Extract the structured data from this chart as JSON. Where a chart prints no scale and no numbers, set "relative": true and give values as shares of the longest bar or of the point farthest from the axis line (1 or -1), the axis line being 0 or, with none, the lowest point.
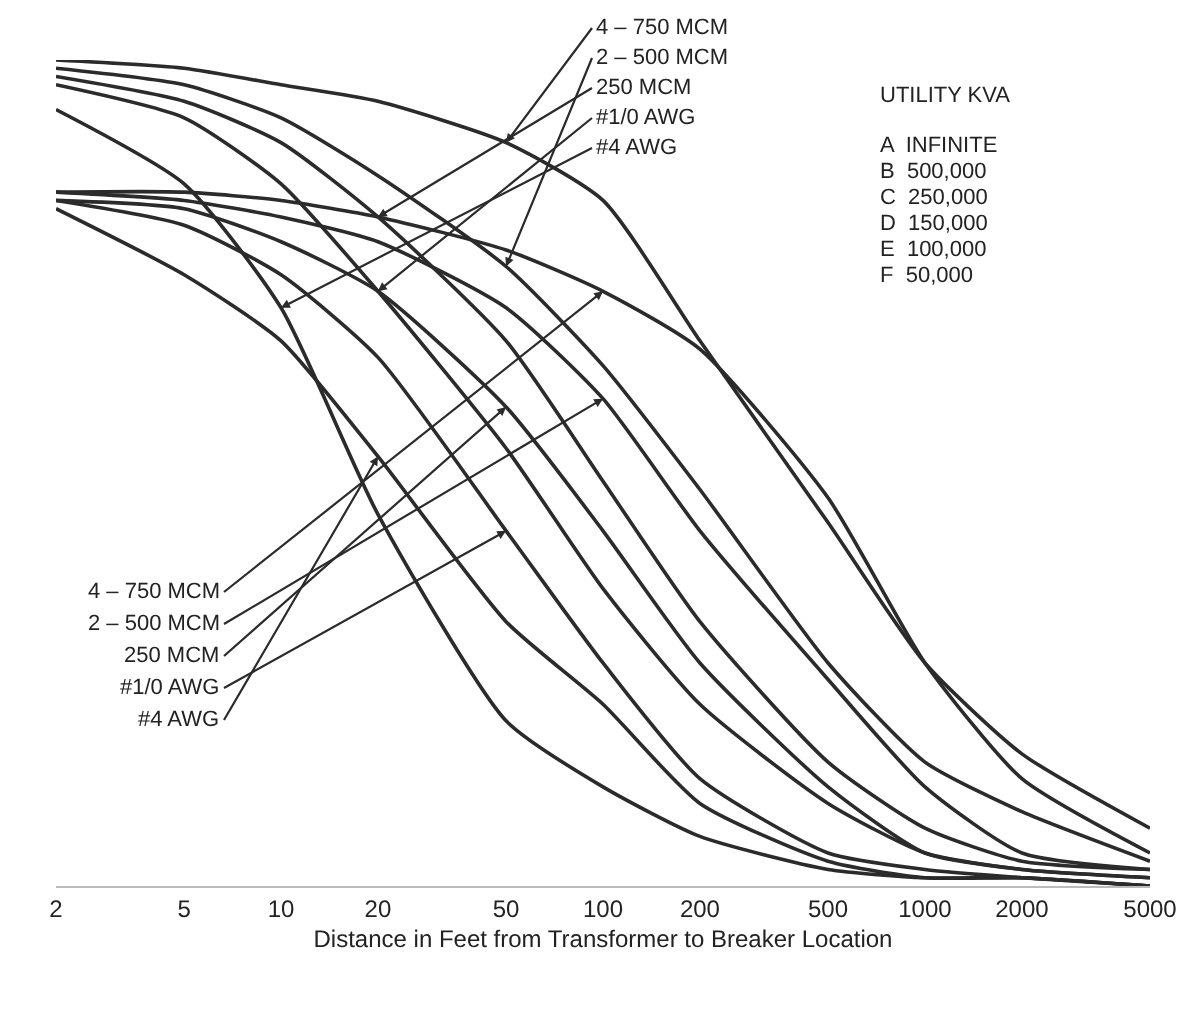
{
  "chart_data": {
    "type": "line",
    "relative": true,
    "log": "x",
    "grid": false,
    "tick_labels": "x",
    "marker": "none",
    "line_style": "solid",
    "xlabel": "Distance in Feet from Transformer to Breaker Location",
    "x": [
      2,
      5,
      10,
      20,
      50,
      100,
      200,
      500,
      1000,
      2000,
      5000
    ],
    "xlim": [
      2,
      5000
    ],
    "xticks": [
      2,
      5,
      10,
      20,
      50,
      100,
      200,
      500,
      1000,
      2000,
      5000
    ],
    "series": [
      {
        "color": "#2b2b2b",
        "values": [
          1.0,
          0.99,
          0.97,
          0.95,
          0.9,
          0.83,
          0.66,
          0.44,
          0.27,
          0.16,
          0.07
        ]
      },
      {
        "color": "#2b2b2b",
        "values": [
          0.99,
          0.97,
          0.93,
          0.86,
          0.75,
          0.63,
          0.48,
          0.27,
          0.15,
          0.09,
          0.03
        ]
      },
      {
        "color": "#2b2b2b",
        "values": [
          0.98,
          0.95,
          0.9,
          0.81,
          0.66,
          0.49,
          0.32,
          0.15,
          0.07,
          0.03,
          0.02
        ]
      },
      {
        "color": "#2b2b2b",
        "values": [
          0.97,
          0.93,
          0.85,
          0.72,
          0.53,
          0.36,
          0.22,
          0.1,
          0.04,
          0.02,
          0.01
        ]
      },
      {
        "color": "#2b2b2b",
        "values": [
          0.94,
          0.85,
          0.7,
          0.45,
          0.2,
          0.12,
          0.06,
          0.02,
          0.01,
          0.01,
          0.0
        ]
      },
      {
        "color": "#2b2b2b",
        "values": [
          0.84,
          0.84,
          0.83,
          0.81,
          0.77,
          0.72,
          0.65,
          0.47,
          0.27,
          0.13,
          0.04
        ]
      },
      {
        "color": "#2b2b2b",
        "values": [
          0.84,
          0.83,
          0.81,
          0.78,
          0.7,
          0.59,
          0.43,
          0.25,
          0.12,
          0.04,
          0.02
        ]
      },
      {
        "color": "#2b2b2b",
        "values": [
          0.83,
          0.82,
          0.78,
          0.72,
          0.58,
          0.43,
          0.27,
          0.12,
          0.04,
          0.02,
          0.01
        ]
      },
      {
        "color": "#2b2b2b",
        "values": [
          0.83,
          0.8,
          0.74,
          0.64,
          0.43,
          0.27,
          0.13,
          0.04,
          0.02,
          0.01,
          0.0
        ]
      },
      {
        "color": "#2b2b2b",
        "values": [
          0.82,
          0.74,
          0.66,
          0.52,
          0.32,
          0.22,
          0.1,
          0.03,
          0.01,
          0.01,
          0.0
        ]
      }
    ],
    "annotations": [
      {
        "text": "4 – 750 MCM",
        "x": 50,
        "y": 0.9
      },
      {
        "text": "2 – 500 MCM",
        "x": 50,
        "y": 0.75
      },
      {
        "text": "250 MCM",
        "x": 20,
        "y": 0.81
      },
      {
        "text": "#1/0 AWG",
        "x": 20,
        "y": 0.72
      },
      {
        "text": "#4 AWG",
        "x": 10,
        "y": 0.7
      },
      {
        "text": "4 – 750 MCM",
        "x": 100,
        "y": 0.72
      },
      {
        "text": "2 – 500 MCM",
        "x": 100,
        "y": 0.59
      },
      {
        "text": "250 MCM",
        "x": 50,
        "y": 0.58
      },
      {
        "text": "#1/0 AWG",
        "x": 50,
        "y": 0.43
      },
      {
        "text": "#4 AWG",
        "x": 20,
        "y": 0.52
      },
      "UTILITY KVA",
      "A  INFINITE",
      "B  500,000",
      "C  250,000",
      "D  150,000",
      "E  100,000",
      "F  50,000"
    ]
  }
}
